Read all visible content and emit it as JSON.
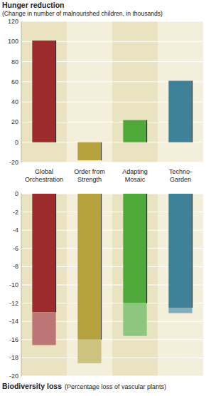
{
  "chart_data": [
    {
      "type": "bar",
      "title": "Hunger reduction",
      "subtitle": "(Change in number of malnourished children, in thousands)",
      "categories": [
        "Global Orchestration",
        "Order from Strength",
        "Adapting Mosaic",
        "Techno-Garden"
      ],
      "values": [
        101,
        -18,
        22,
        61
      ],
      "colors": [
        "#9b2b2c",
        "#b5a23e",
        "#4ea83a",
        "#3f8199"
      ],
      "ylim": [
        -20,
        120
      ],
      "yticks": [
        -20,
        0,
        20,
        40,
        60,
        80,
        100,
        120
      ],
      "grid": true
    },
    {
      "type": "bar",
      "title": "Biodiversity loss",
      "subtitle": "(Percentage loss of vascular plants)",
      "values": [
        -13,
        -16,
        -12,
        -12.5
      ],
      "extent": [
        -16.6,
        -18.6,
        -15.6,
        -13.1
      ],
      "colors": [
        "#9b2b2c",
        "#b5a23e",
        "#4ea83a",
        "#3f8199"
      ],
      "ylim": [
        -20,
        0
      ],
      "yticks": [
        0,
        -2,
        -4,
        -6,
        -8,
        -10,
        -12,
        -14,
        -16,
        -18,
        -20
      ],
      "grid": true
    }
  ]
}
